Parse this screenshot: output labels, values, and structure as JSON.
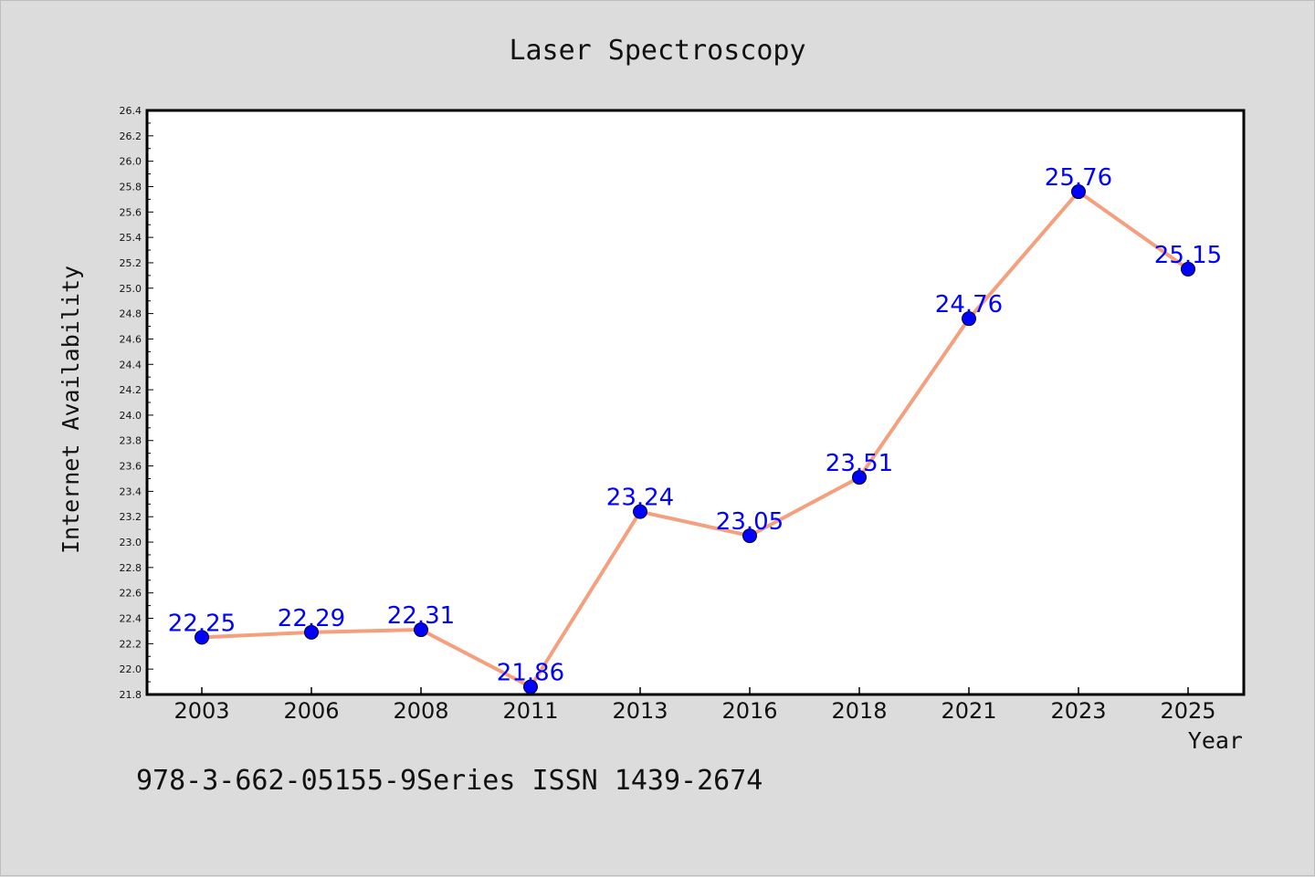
{
  "chart_data": {
    "type": "line",
    "title": "Laser Spectroscopy",
    "xlabel": "Year",
    "ylabel": "Internet Availability",
    "categories": [
      "2003",
      "2006",
      "2008",
      "2011",
      "2013",
      "2016",
      "2018",
      "2021",
      "2023",
      "2025"
    ],
    "series": [
      {
        "values": [
          22.25,
          22.29,
          22.31,
          21.86,
          23.24,
          23.05,
          23.51,
          24.76,
          25.76,
          25.15
        ]
      }
    ],
    "data_labels": [
      "22.25",
      "22.29",
      "22.31",
      "21.86",
      "23.24",
      "23.05",
      "23.51",
      "24.76",
      "25.76",
      "25.15"
    ],
    "ylim": [
      21.8,
      26.4
    ],
    "ytick_step": 0.2,
    "yticks": [
      "21.8",
      "22.0",
      "22.2",
      "22.4",
      "22.6",
      "22.8",
      "23.0",
      "23.2",
      "23.4",
      "23.6",
      "23.8",
      "24.0",
      "24.2",
      "24.4",
      "24.6",
      "24.8",
      "25.0",
      "25.2",
      "25.4",
      "25.6",
      "25.8",
      "26.0",
      "26.2",
      "26.4"
    ],
    "grid": false,
    "legend": "none",
    "colors": {
      "line": "#f4a07e",
      "marker": "#0000ff",
      "label": "#0000ff",
      "plot_background": "#ffffff",
      "figure_background": "#dcdcdc"
    }
  },
  "footer": {
    "text": "978-3-662-05155-9Series ISSN 1439-2674"
  }
}
